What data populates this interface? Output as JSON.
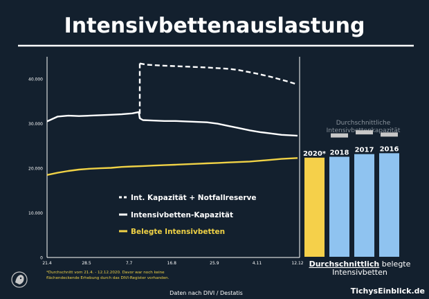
{
  "header": {
    "title": "Intensivbettenauslastung"
  },
  "chart_data": [
    {
      "type": "line",
      "title": "",
      "xlabel": "",
      "ylabel": "",
      "x_tick_labels": [
        "21.4",
        "28.5",
        "7.7",
        "16.8",
        "25.9",
        "4.11",
        "12.12"
      ],
      "x_tick_values": [
        0,
        37,
        77,
        117,
        157,
        197,
        235
      ],
      "y_tick_labels": [
        "0",
        "10.000",
        "20.000",
        "30.000",
        "40.000"
      ],
      "y_tick_values": [
        0,
        10000,
        20000,
        30000,
        40000
      ],
      "ylim": [
        0,
        45000
      ],
      "xlim": [
        0,
        235
      ],
      "grid": false,
      "legend_position": "bottom-center",
      "series": [
        {
          "name": "Int. Kapazität + Notfallreserve",
          "style": "dashed",
          "color": "#ffffff",
          "x": [
            87,
            94,
            110,
            130,
            150,
            170,
            180,
            195,
            210,
            225,
            235
          ],
          "y": [
            43500,
            43200,
            43000,
            42800,
            42600,
            42300,
            42000,
            41300,
            40500,
            39500,
            38800
          ]
        },
        {
          "name": "Intensivbetten-Kapazität",
          "style": "solid",
          "color": "#ffffff",
          "x": [
            0,
            10,
            20,
            30,
            40,
            50,
            60,
            70,
            80,
            86,
            87,
            90,
            100,
            110,
            120,
            130,
            140,
            150,
            160,
            170,
            180,
            190,
            200,
            210,
            220,
            235
          ],
          "y": [
            30500,
            31600,
            31800,
            31700,
            31800,
            31900,
            32000,
            32100,
            32300,
            32600,
            31200,
            30800,
            30700,
            30600,
            30600,
            30500,
            30400,
            30300,
            30000,
            29500,
            29000,
            28500,
            28100,
            27800,
            27500,
            27300
          ]
        },
        {
          "name": "Belegte Intensivbetten",
          "style": "solid",
          "color": "#f0d246",
          "x": [
            0,
            10,
            20,
            30,
            40,
            50,
            60,
            70,
            80,
            90,
            100,
            110,
            120,
            130,
            140,
            150,
            160,
            170,
            180,
            190,
            200,
            210,
            220,
            235
          ],
          "y": [
            18500,
            19000,
            19400,
            19700,
            19900,
            20000,
            20100,
            20300,
            20400,
            20500,
            20600,
            20700,
            20800,
            20900,
            21000,
            21100,
            21200,
            21300,
            21400,
            21500,
            21700,
            21900,
            22100,
            22300
          ]
        }
      ]
    },
    {
      "type": "bar",
      "title": "",
      "categories": [
        "2020*",
        "2018",
        "2017",
        "2016"
      ],
      "values": [
        22300,
        22500,
        23100,
        23300
      ],
      "capacity_values": [
        null,
        27300,
        28000,
        27500
      ],
      "colors": [
        "#f5d04a",
        "#8fc3f0",
        "#8fc3f0",
        "#8fc3f0"
      ],
      "capacity_label": "Durchschnittliche Intensivbettenkapazität",
      "ylim": [
        0,
        45000
      ],
      "xlabel_bold": "Durchschnittlich",
      "xlabel_rest": " belegte",
      "xlabel_line2": "Intensivbetten"
    }
  ],
  "footnote": {
    "line1": "*Durchschnitt vom 21.4. - 12.12.2020. Davor war noch keine",
    "line2": "flächendeckende Erhebung durch das DIVI-Register vorhanden."
  },
  "source": "Daten nach DIVI / Destatis",
  "brand": "TichysEinblick.de",
  "colors": {
    "background": "#13202e",
    "accent_yellow": "#f0d246",
    "bar_blue": "#8fc3f0",
    "capacity_gray": "#c8c8c8"
  }
}
